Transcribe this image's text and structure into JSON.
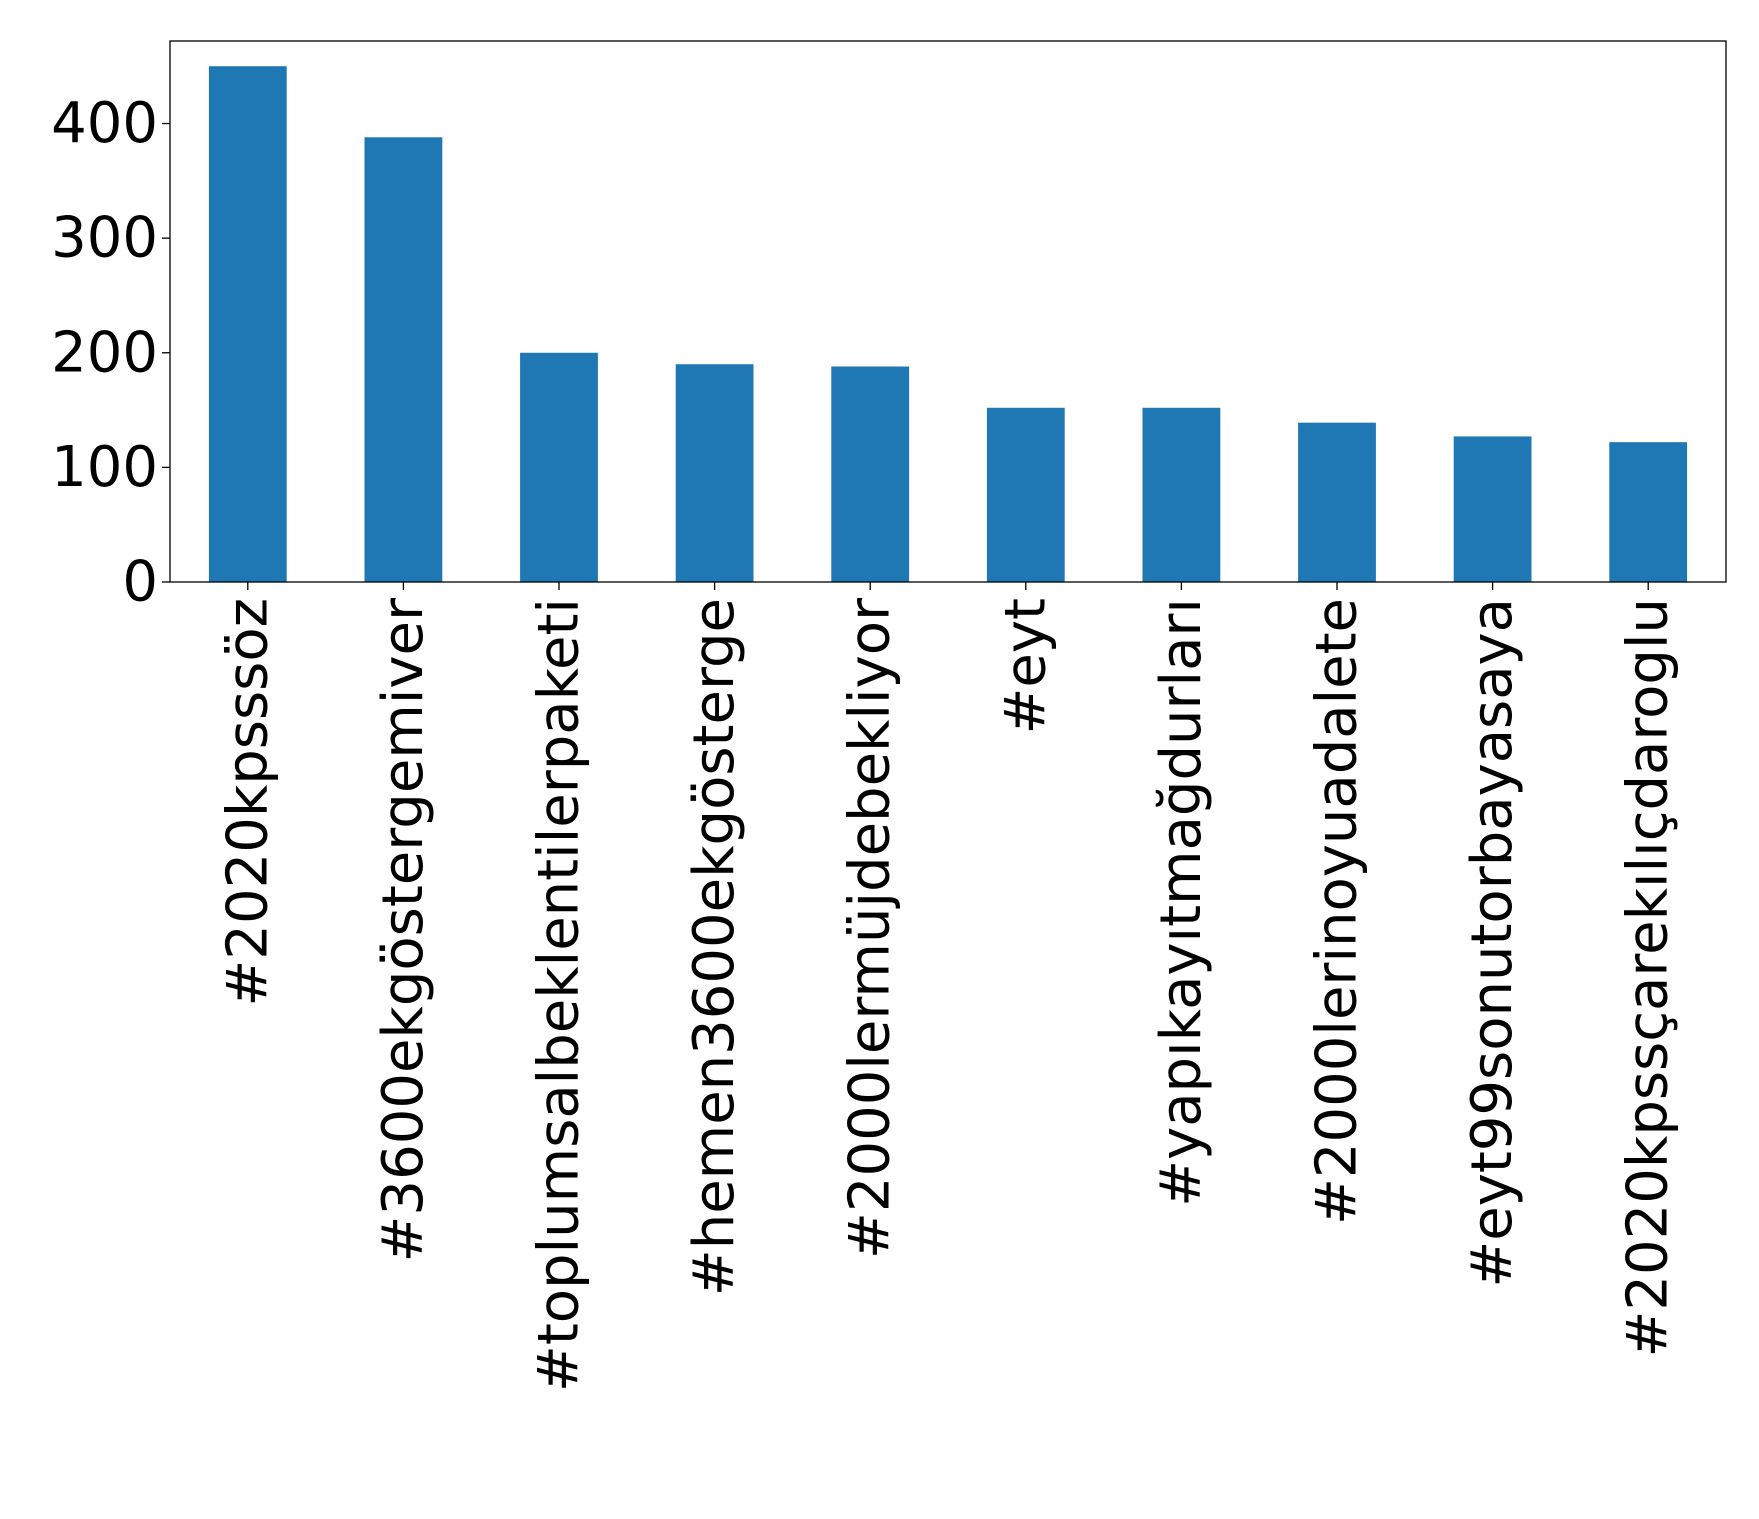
{
  "chart_data": {
    "type": "bar",
    "title": "",
    "xlabel": "",
    "ylabel": "",
    "categories": [
      "#2020kpsssöz",
      "#3600ekgöstergemiver",
      "#toplumsalbeklentilerpaketi",
      "#hemen3600ekgösterge",
      "#2000lermüjdebekliyor",
      "#eyt",
      "#yapıkayıtmağdurları",
      "#2000lerinoyuadalete",
      "#eyt99sonutorbayasaya",
      "#2020kpssçarekılıçdaroglu"
    ],
    "values": [
      450,
      388,
      200,
      190,
      188,
      152,
      152,
      139,
      127,
      122
    ],
    "ylim": [
      0,
      472
    ],
    "yticks": [
      0,
      100,
      200,
      300,
      400
    ],
    "bar_color": "#1f77b4",
    "grid": false,
    "legend": "none"
  }
}
